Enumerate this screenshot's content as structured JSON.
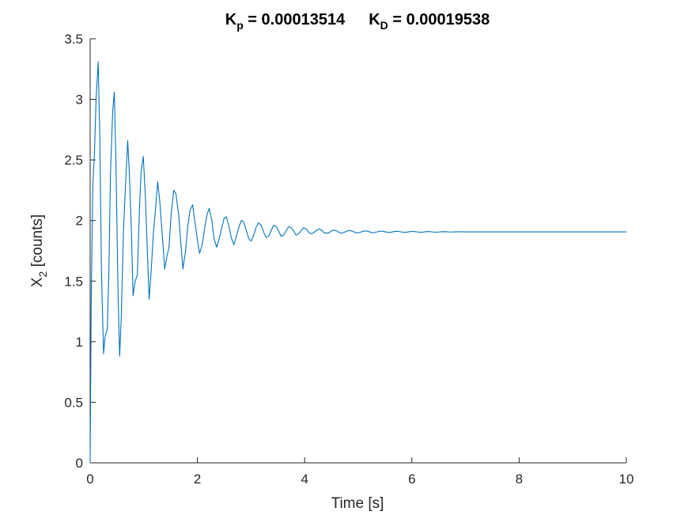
{
  "chart_data": {
    "type": "line",
    "title": {
      "kp_symbol": "K",
      "kp_subscript": "p",
      "kp_text": " = 0.00013514",
      "kd_symbol": "K",
      "kd_subscript": "D",
      "kd_text": " = 0.00019538"
    },
    "xlabel": "Time [s]",
    "ylabel": {
      "symbol": "X",
      "subscript": "2",
      "rest": " [counts]"
    },
    "xlim": [
      0,
      10
    ],
    "ylim": [
      0,
      3.5
    ],
    "xticks": [
      0,
      2,
      4,
      6,
      8,
      10
    ],
    "xtick_labels": [
      "0",
      "2",
      "4",
      "6",
      "8",
      "10"
    ],
    "yticks": [
      0,
      0.5,
      1,
      1.5,
      2,
      2.5,
      3,
      3.5
    ],
    "ytick_labels": [
      "0",
      "0.5",
      "1",
      "1.5",
      "2",
      "2.5",
      "3",
      "3.5"
    ],
    "grid": false,
    "series": [
      {
        "color": "#0072BD",
        "x": [
          0,
          0.02,
          0.05,
          0.08,
          0.11,
          0.15,
          0.18,
          0.21,
          0.25,
          0.28,
          0.32,
          0.35,
          0.38,
          0.42,
          0.45,
          0.48,
          0.52,
          0.55,
          0.58,
          0.62,
          0.66,
          0.7,
          0.73,
          0.77,
          0.8,
          0.84,
          0.88,
          0.92,
          0.95,
          0.99,
          1.03,
          1.07,
          1.1,
          1.14,
          1.18,
          1.22,
          1.26,
          1.3,
          1.35,
          1.39,
          1.43,
          1.47,
          1.51,
          1.56,
          1.6,
          1.65,
          1.69,
          1.73,
          1.78,
          1.82,
          1.86,
          1.91,
          1.95,
          2.0,
          2.04,
          2.09,
          2.13,
          2.18,
          2.22,
          2.27,
          2.31,
          2.36,
          2.4,
          2.45,
          2.5,
          2.54,
          2.59,
          2.63,
          2.68,
          2.72,
          2.77,
          2.82,
          2.86,
          2.91,
          2.96,
          3.0,
          3.05,
          3.1,
          3.14,
          3.19,
          3.24,
          3.28,
          3.33,
          3.38,
          3.42,
          3.47,
          3.52,
          3.56,
          3.61,
          3.66,
          3.7,
          3.75,
          3.8,
          3.84,
          3.89,
          3.94,
          3.98,
          4.03,
          4.08,
          4.13,
          4.17,
          4.22,
          4.27,
          4.32,
          4.36,
          4.41,
          4.46,
          4.5,
          4.55,
          4.6,
          4.65,
          4.7,
          4.75,
          4.8,
          4.85,
          4.9,
          4.95,
          5.0,
          5.05,
          5.1,
          5.15,
          5.2,
          5.25,
          5.3,
          5.35,
          5.4,
          5.45,
          5.5,
          5.55,
          5.6,
          5.65,
          5.7,
          5.75,
          5.8,
          5.85,
          5.9,
          5.95,
          6.0,
          6.05,
          6.1,
          6.15,
          6.2,
          6.25,
          6.3,
          6.35,
          6.4,
          6.45,
          6.5,
          6.55,
          6.6,
          6.65,
          6.7,
          6.75,
          6.8,
          6.85,
          6.9,
          6.95,
          7.0,
          7.5,
          8.0,
          8.5,
          9.0,
          9.5,
          10.0
        ],
        "y": [
          0,
          1.35,
          2.3,
          2.55,
          3.0,
          3.31,
          2.7,
          1.6,
          0.9,
          1.05,
          1.1,
          1.6,
          2.4,
          2.9,
          3.06,
          2.5,
          1.4,
          0.88,
          1.2,
          1.9,
          2.3,
          2.66,
          2.4,
          1.9,
          1.38,
          1.5,
          1.55,
          2.1,
          2.4,
          2.53,
          2.2,
          1.7,
          1.35,
          1.6,
          1.9,
          2.1,
          2.32,
          2.15,
          1.85,
          1.6,
          1.7,
          1.78,
          2.05,
          2.25,
          2.22,
          2.05,
          1.82,
          1.6,
          1.75,
          1.95,
          2.08,
          2.13,
          2.0,
          1.84,
          1.73,
          1.8,
          1.92,
          2.05,
          2.1,
          2.0,
          1.85,
          1.78,
          1.84,
          1.93,
          2.02,
          2.03,
          1.95,
          1.86,
          1.8,
          1.86,
          1.94,
          2.0,
          1.99,
          1.92,
          1.85,
          1.83,
          1.88,
          1.95,
          1.98,
          1.96,
          1.9,
          1.86,
          1.87,
          1.92,
          1.96,
          1.95,
          1.91,
          1.87,
          1.88,
          1.92,
          1.95,
          1.94,
          1.91,
          1.88,
          1.89,
          1.92,
          1.94,
          1.93,
          1.9,
          1.89,
          1.9,
          1.92,
          1.93,
          1.92,
          1.9,
          1.895,
          1.9,
          1.915,
          1.92,
          1.915,
          1.9,
          1.895,
          1.905,
          1.915,
          1.917,
          1.91,
          1.9,
          1.898,
          1.905,
          1.913,
          1.914,
          1.908,
          1.9,
          1.9,
          1.906,
          1.912,
          1.912,
          1.907,
          1.902,
          1.902,
          1.907,
          1.911,
          1.91,
          1.906,
          1.902,
          1.903,
          1.907,
          1.91,
          1.909,
          1.906,
          1.903,
          1.904,
          1.907,
          1.909,
          1.908,
          1.905,
          1.904,
          1.905,
          1.907,
          1.908,
          1.907,
          1.905,
          1.905,
          1.906,
          1.907,
          1.907,
          1.906,
          1.906,
          1.906,
          1.906,
          1.906,
          1.906,
          1.906,
          1.906
        ]
      }
    ]
  }
}
